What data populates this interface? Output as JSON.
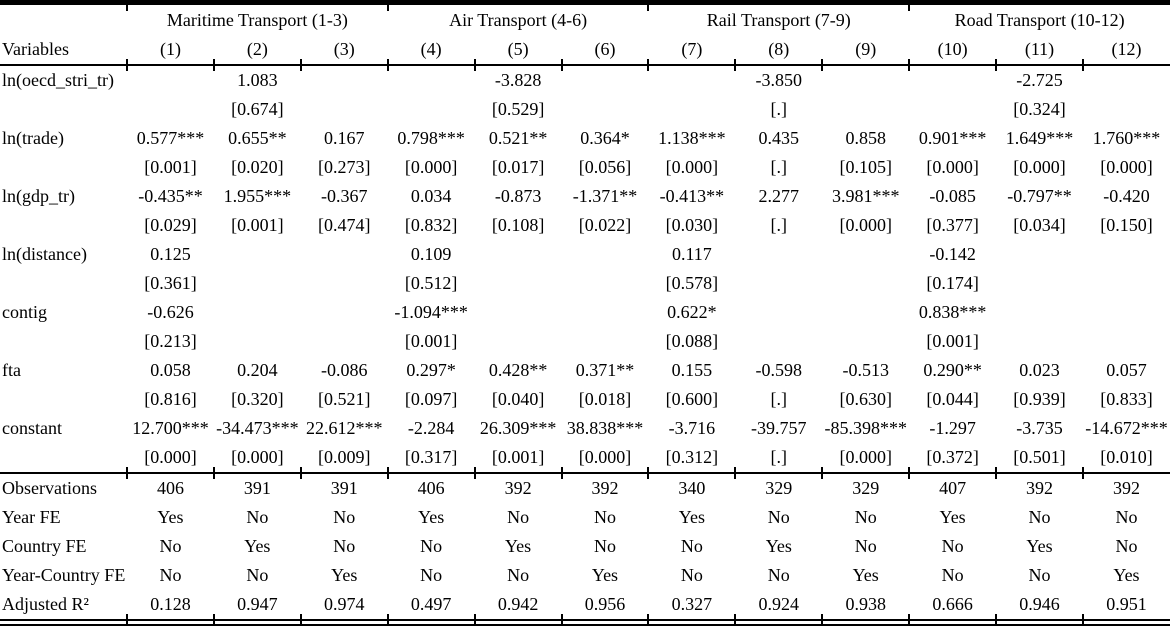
{
  "table": {
    "row_header_label": "Variables",
    "column_groups": [
      "Maritime Transport (1-3)",
      "Air Transport (4-6)",
      "Rail Transport (7-9)",
      "Road Transport (10-12)"
    ],
    "column_numbers": [
      "(1)",
      "(2)",
      "(3)",
      "(4)",
      "(5)",
      "(6)",
      "(7)",
      "(8)",
      "(9)",
      "(10)",
      "(11)",
      "(12)"
    ],
    "coefficient_rows": [
      {
        "variable": "ln(oecd_stri_tr)",
        "coefficients": [
          "",
          "1.083",
          "",
          "",
          "-3.828",
          "",
          "",
          "-3.850",
          "",
          "",
          "-2.725",
          ""
        ],
        "p_values": [
          "",
          "[0.674]",
          "",
          "",
          "[0.529]",
          "",
          "",
          "[.]",
          "",
          "",
          "[0.324]",
          ""
        ]
      },
      {
        "variable": "ln(trade)",
        "coefficients": [
          "0.577***",
          "0.655**",
          "0.167",
          "0.798***",
          "0.521**",
          "0.364*",
          "1.138***",
          "0.435",
          "0.858",
          "0.901***",
          "1.649***",
          "1.760***"
        ],
        "p_values": [
          "[0.001]",
          "[0.020]",
          "[0.273]",
          "[0.000]",
          "[0.017]",
          "[0.056]",
          "[0.000]",
          "[.]",
          "[0.105]",
          "[0.000]",
          "[0.000]",
          "[0.000]"
        ]
      },
      {
        "variable": "ln(gdp_tr)",
        "coefficients": [
          "-0.435**",
          "1.955***",
          "-0.367",
          "0.034",
          "-0.873",
          "-1.371**",
          "-0.413**",
          "2.277",
          "3.981***",
          "-0.085",
          "-0.797**",
          "-0.420"
        ],
        "p_values": [
          "[0.029]",
          "[0.001]",
          "[0.474]",
          "[0.832]",
          "[0.108]",
          "[0.022]",
          "[0.030]",
          "[.]",
          "[0.000]",
          "[0.377]",
          "[0.034]",
          "[0.150]"
        ]
      },
      {
        "variable": "ln(distance)",
        "coefficients": [
          "0.125",
          "",
          "",
          "0.109",
          "",
          "",
          "0.117",
          "",
          "",
          "-0.142",
          "",
          ""
        ],
        "p_values": [
          "[0.361]",
          "",
          "",
          "[0.512]",
          "",
          "",
          "[0.578]",
          "",
          "",
          "[0.174]",
          "",
          ""
        ]
      },
      {
        "variable": "contig",
        "coefficients": [
          "-0.626",
          "",
          "",
          "-1.094***",
          "",
          "",
          "0.622*",
          "",
          "",
          "0.838***",
          "",
          ""
        ],
        "p_values": [
          "[0.213]",
          "",
          "",
          "[0.001]",
          "",
          "",
          "[0.088]",
          "",
          "",
          "[0.001]",
          "",
          ""
        ]
      },
      {
        "variable": "fta",
        "coefficients": [
          "0.058",
          "0.204",
          "-0.086",
          "0.297*",
          "0.428**",
          "0.371**",
          "0.155",
          "-0.598",
          "-0.513",
          "0.290**",
          "0.023",
          "0.057"
        ],
        "p_values": [
          "[0.816]",
          "[0.320]",
          "[0.521]",
          "[0.097]",
          "[0.040]",
          "[0.018]",
          "[0.600]",
          "[.]",
          "[0.630]",
          "[0.044]",
          "[0.939]",
          "[0.833]"
        ]
      },
      {
        "variable": "constant",
        "coefficients": [
          "12.700***",
          "-34.473***",
          "22.612***",
          "-2.284",
          "26.309***",
          "38.838***",
          "-3.716",
          "-39.757",
          "-85.398***",
          "-1.297",
          "-3.735",
          "-14.672***"
        ],
        "p_values": [
          "[0.000]",
          "[0.000]",
          "[0.009]",
          "[0.317]",
          "[0.001]",
          "[0.000]",
          "[0.312]",
          "[.]",
          "[0.000]",
          "[0.372]",
          "[0.501]",
          "[0.010]"
        ]
      }
    ],
    "summary_rows": [
      {
        "label": "Observations",
        "values": [
          "406",
          "391",
          "391",
          "406",
          "392",
          "392",
          "340",
          "329",
          "329",
          "407",
          "392",
          "392"
        ]
      },
      {
        "label": "Year FE",
        "values": [
          "Yes",
          "No",
          "No",
          "Yes",
          "No",
          "No",
          "Yes",
          "No",
          "No",
          "Yes",
          "No",
          "No"
        ]
      },
      {
        "label": "Country FE",
        "values": [
          "No",
          "Yes",
          "No",
          "No",
          "Yes",
          "No",
          "No",
          "Yes",
          "No",
          "No",
          "Yes",
          "No"
        ]
      },
      {
        "label": "Year-Country FE",
        "values": [
          "No",
          "No",
          "Yes",
          "No",
          "No",
          "Yes",
          "No",
          "No",
          "Yes",
          "No",
          "No",
          "Yes"
        ]
      },
      {
        "label": "Adjusted R²",
        "values": [
          "0.128",
          "0.947",
          "0.974",
          "0.497",
          "0.942",
          "0.956",
          "0.327",
          "0.924",
          "0.938",
          "0.666",
          "0.946",
          "0.951"
        ]
      }
    ]
  }
}
